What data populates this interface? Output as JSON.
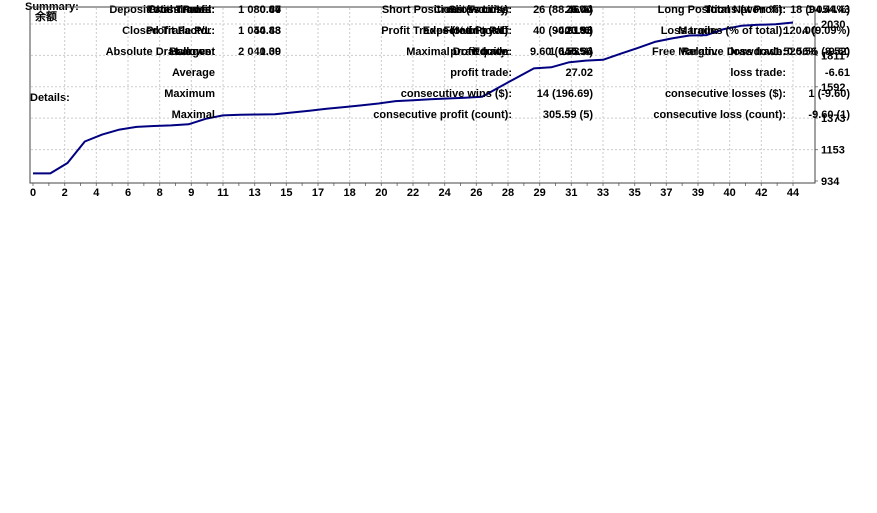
{
  "summary": {
    "title": "Summary:",
    "rows": [
      [
        "Deposit/Withdrawal:",
        "0.00",
        "Credit Facility:",
        "0.00",
        "",
        ""
      ],
      [
        "Closed Trade P/L:",
        "1 054.43",
        "Floating P/L:",
        "-400.83",
        "Margin:",
        "120.00"
      ],
      [
        "Balance:",
        "2 041.39",
        "Equity:",
        "1 640.56",
        "Free Margin:",
        "1 520.56"
      ]
    ]
  },
  "details": {
    "title": "Details:"
  },
  "stats": {
    "rows_a": [
      [
        "Gross Profit:",
        "1 080.87",
        "Gross Loss:",
        "26.44",
        "Total Net Profit:",
        "1 054.43"
      ],
      [
        "Profit Factor:",
        "40.88",
        "Expected Payoff:",
        "23.96",
        "",
        ""
      ],
      [
        "Absolute Drawdown:",
        "0.00",
        "Maximal Drawdown:",
        "9.60 (0.53%)",
        "Relative Drawdown:",
        "0.56% (8.52)"
      ]
    ],
    "rows_b": [
      [
        "Total Trades:",
        "44",
        "Short Positions (won %):",
        "26 (88.46%)",
        "Long Positions (won %):",
        "18 (94.44%)"
      ],
      [
        "",
        "",
        "Profit Trades (% of total):",
        "40 (90.91%)",
        "Loss trades (% of total):",
        "4 (9.09%)"
      ],
      [
        "Largest",
        "",
        "profit trade:",
        "155.34",
        "loss trade:",
        "-9.60"
      ],
      [
        "Average",
        "",
        "profit trade:",
        "27.02",
        "loss trade:",
        "-6.61"
      ],
      [
        "Maximum",
        "",
        "consecutive wins ($):",
        "14 (196.69)",
        "consecutive losses ($):",
        "1 (-9.60)"
      ],
      [
        "Maximal",
        "",
        "consecutive profit (count):",
        "305.59 (5)",
        "consecutive loss (count):",
        "-9.60 (1)"
      ]
    ]
  },
  "chart_data": {
    "type": "line",
    "title": "余额",
    "legend_position": "top-left-inside",
    "grid": true,
    "series": [
      {
        "name": "余额",
        "values": [
          987,
          987,
          1060,
          1210,
          1258,
          1293,
          1312,
          1318,
          1322,
          1330,
          1368,
          1392,
          1396,
          1398,
          1400,
          1412,
          1425,
          1438,
          1450,
          1462,
          1475,
          1492,
          1498,
          1505,
          1510,
          1515,
          1522,
          1590,
          1655,
          1720,
          1728,
          1762,
          1775,
          1780,
          1822,
          1862,
          1905,
          1930,
          1950,
          1953,
          1995,
          2018,
          2025,
          2028,
          2041
        ]
      }
    ],
    "xlabel": "",
    "ylabel": "",
    "xlim": [
      0,
      44
    ],
    "ylim": [
      920,
      2149
    ],
    "x_tick_labels": [
      "0",
      "2",
      "4",
      "6",
      "8",
      "9",
      "11",
      "13",
      "15",
      "17",
      "18",
      "20",
      "22",
      "24",
      "26",
      "28",
      "29",
      "31",
      "33",
      "35",
      "37",
      "39",
      "40",
      "42",
      "44"
    ],
    "y_ticks": [
      2030,
      1811,
      1592,
      1373,
      1153,
      934
    ],
    "line_color": "#000080",
    "grid_color": "#cbcbcb",
    "border_color": "#444444",
    "tick_color": "#808080"
  }
}
